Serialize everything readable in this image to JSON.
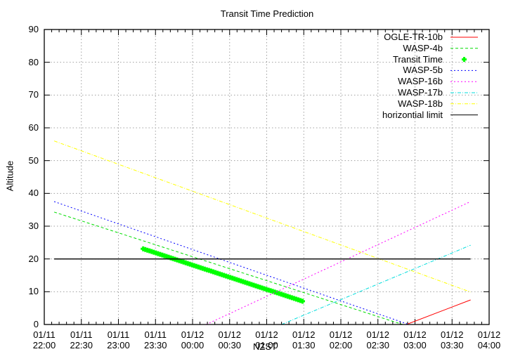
{
  "chart_data": {
    "type": "line",
    "title": "Transit Time Prediction",
    "xlabel": "NZST",
    "ylabel": "Altitude",
    "ylim": [
      0,
      90
    ],
    "yticks": [
      0,
      10,
      20,
      30,
      40,
      50,
      60,
      70,
      80,
      90
    ],
    "xlim": [
      "01/11 22:00",
      "01/12 04:00"
    ],
    "xticks": [
      {
        "date": "01/11",
        "time": "22:00"
      },
      {
        "date": "01/11",
        "time": "22:30"
      },
      {
        "date": "01/11",
        "time": "23:00"
      },
      {
        "date": "01/11",
        "time": "23:30"
      },
      {
        "date": "01/12",
        "time": "00:00"
      },
      {
        "date": "01/12",
        "time": "00:30"
      },
      {
        "date": "01/12",
        "time": "01:00"
      },
      {
        "date": "01/12",
        "time": "01:30"
      },
      {
        "date": "01/12",
        "time": "02:00"
      },
      {
        "date": "01/12",
        "time": "02:30"
      },
      {
        "date": "01/12",
        "time": "03:00"
      },
      {
        "date": "01/12",
        "time": "03:30"
      },
      {
        "date": "01/12",
        "time": "04:00"
      }
    ],
    "grid": true,
    "legend_position": "top-right",
    "series": [
      {
        "name": "OGLE-TR-10b",
        "color": "#ff0000",
        "style": "solid",
        "points": [
          [
            "02:53",
            0.0
          ],
          [
            "03:45",
            7.5
          ]
        ]
      },
      {
        "name": "WASP-4b",
        "color": "#00dd00",
        "style": "dashed",
        "points": [
          [
            "22:08",
            34.3
          ],
          [
            "02:50",
            0.0
          ]
        ]
      },
      {
        "name": "Transit Time",
        "color": "#00ff00",
        "style": "markers",
        "points": [
          [
            "23:20",
            23.1
          ],
          [
            "01:29",
            7.1
          ]
        ]
      },
      {
        "name": "WASP-5b",
        "color": "#0000ff",
        "style": "dotted",
        "points": [
          [
            "22:08",
            37.5
          ],
          [
            "02:55",
            0.0
          ]
        ]
      },
      {
        "name": "WASP-16b",
        "color": "#ff00ff",
        "style": "dotted",
        "points": [
          [
            "00:11",
            0.0
          ],
          [
            "03:45",
            37.5
          ]
        ]
      },
      {
        "name": "WASP-17b",
        "color": "#00dddd",
        "style": "dashdot",
        "points": [
          [
            "01:12",
            0.0
          ],
          [
            "03:45",
            24.2
          ]
        ]
      },
      {
        "name": "WASP-18b",
        "color": "#ffff00",
        "style": "dashdot",
        "points": [
          [
            "22:08",
            56.0
          ],
          [
            "03:45",
            9.9
          ]
        ]
      },
      {
        "name": "horizontial limit",
        "color": "#000000",
        "style": "solid",
        "points": [
          [
            "22:08",
            20
          ],
          [
            "03:45",
            20
          ]
        ]
      }
    ]
  },
  "legend": {
    "items": [
      "OGLE-TR-10b",
      "WASP-4b",
      "Transit Time",
      "WASP-5b",
      "WASP-16b",
      "WASP-17b",
      "WASP-18b",
      "horizontial limit"
    ]
  }
}
